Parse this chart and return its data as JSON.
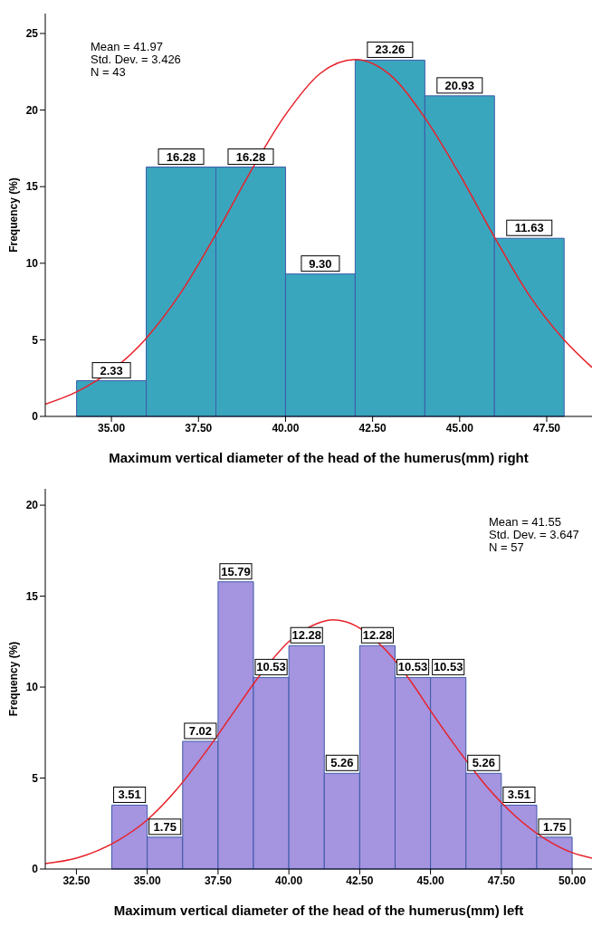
{
  "chart_data": [
    {
      "type": "histogram",
      "xlabel": "Maximum vertical diameter of the head of the humerus(mm) right",
      "ylabel": "Frequency (%)",
      "annotations": [
        "Mean = 41.97",
        "Std. Dev. = 3.426",
        "N = 43"
      ],
      "bins": [
        34,
        36,
        38,
        40,
        42,
        44,
        46,
        48
      ],
      "values": [
        2.33,
        16.28,
        16.28,
        9.3,
        23.26,
        20.93,
        11.63
      ],
      "value_labels": [
        "2.33",
        "16.28",
        "16.28",
        "9.30",
        "23.26",
        "20.93",
        "11.63"
      ],
      "color": "#3aa6be",
      "grid": false,
      "xlim": [
        33.1,
        48.8
      ],
      "xticks": [
        {
          "value": 35,
          "label": "35.00"
        },
        {
          "value": 37.5,
          "label": "37.50"
        },
        {
          "value": 40,
          "label": "40.00"
        },
        {
          "value": 42.5,
          "label": "42.50"
        },
        {
          "value": 45,
          "label": "45.00"
        },
        {
          "value": 47.5,
          "label": "47.50"
        }
      ],
      "ylim": [
        0,
        26.3
      ],
      "yticks": [
        0,
        5,
        10,
        15,
        20,
        25
      ],
      "series": [
        {
          "type": "line",
          "color": "#e8222a",
          "x": [
            33.1,
            34,
            36,
            37,
            38,
            39,
            40,
            41,
            42,
            43,
            44,
            45,
            46,
            47,
            48,
            48.8
          ],
          "values": [
            0.8,
            1.6,
            5.1,
            8.1,
            11.9,
            16.0,
            19.7,
            22.4,
            23.3,
            22.3,
            19.5,
            15.8,
            11.7,
            7.9,
            5.0,
            3.2
          ]
        }
      ]
    },
    {
      "type": "histogram",
      "xlabel": "Maximum vertical diameter of the head of the humerus(mm) left",
      "ylabel": "Frequency (%)",
      "annotations": [
        "Mean = 41.55",
        "Std. Dev. = 3.647",
        "N = 57"
      ],
      "bins": [
        33.75,
        35,
        36.25,
        37.5,
        38.75,
        40,
        41.25,
        42.5,
        43.75,
        45,
        46.25,
        47.5,
        48.75,
        50
      ],
      "values": [
        3.51,
        1.75,
        7.02,
        15.79,
        10.53,
        12.28,
        5.26,
        12.28,
        10.53,
        10.53,
        5.26,
        3.51,
        1.75
      ],
      "value_labels": [
        "3.51",
        "1.75",
        "7.02",
        "15.79",
        "10.53",
        "12.28",
        "5.26",
        "12.28",
        "10.53",
        "10.53",
        "5.26",
        "3.51",
        "1.75"
      ],
      "color": "#a594e0",
      "grid": false,
      "xlim": [
        31.4,
        50.7
      ],
      "xticks": [
        {
          "value": 32.5,
          "label": "32.50"
        },
        {
          "value": 35,
          "label": "35.00"
        },
        {
          "value": 37.5,
          "label": "37.50"
        },
        {
          "value": 40,
          "label": "40.00"
        },
        {
          "value": 42.5,
          "label": "42.50"
        },
        {
          "value": 45,
          "label": "45.00"
        },
        {
          "value": 47.5,
          "label": "47.50"
        },
        {
          "value": 50,
          "label": "50.00"
        }
      ],
      "ylim": [
        0,
        20.9
      ],
      "yticks": [
        0,
        5,
        10,
        15,
        20
      ],
      "series": [
        {
          "type": "line",
          "color": "#e8222a",
          "x": [
            31.4,
            32.5,
            34,
            35,
            36,
            37,
            38,
            39,
            40,
            41,
            41.55,
            42,
            43.5,
            44.4,
            45,
            46,
            47,
            48,
            49,
            50,
            50.7
          ],
          "values": [
            0.3,
            0.6,
            1.6,
            2.7,
            4.3,
            6.3,
            8.5,
            10.7,
            12.5,
            13.5,
            13.7,
            13.6,
            11.9,
            10.1,
            8.7,
            6.5,
            4.5,
            2.9,
            1.7,
            0.9,
            0.6
          ]
        }
      ]
    }
  ]
}
